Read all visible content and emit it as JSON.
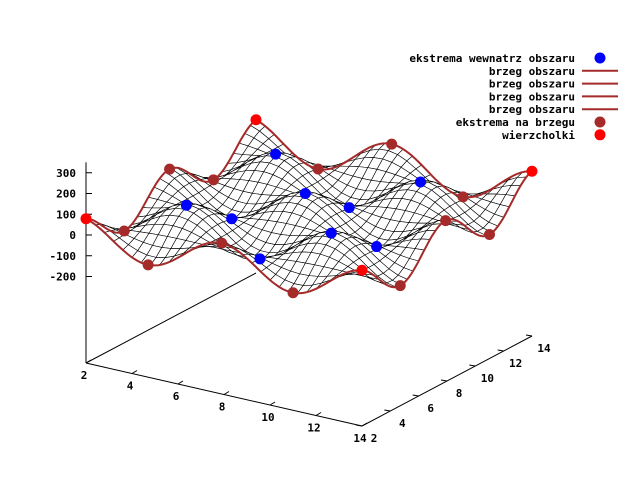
{
  "chart_data": {
    "type": "surface3d",
    "title": "",
    "xlabel": "",
    "ylabel": "",
    "zlabel": "",
    "x_ticks": [
      2,
      4,
      6,
      8,
      10,
      12,
      14
    ],
    "y_ticks": [
      2,
      4,
      6,
      8,
      10,
      12,
      14
    ],
    "z_ticks": [
      -200,
      -100,
      0,
      100,
      200,
      300
    ],
    "xlim": [
      2,
      14
    ],
    "ylim": [
      2,
      14
    ],
    "zlim": [
      -200,
      350
    ],
    "grid": false,
    "legend_position": "top-right",
    "legend": [
      {
        "label": "ekstrema wewnatrz obszaru",
        "kind": "point",
        "color": "#0000ff"
      },
      {
        "label": "brzeg obszaru",
        "kind": "line",
        "color": "#a52a2a"
      },
      {
        "label": "brzeg obszaru",
        "kind": "line",
        "color": "#a52a2a"
      },
      {
        "label": "brzeg obszaru",
        "kind": "line",
        "color": "#a52a2a"
      },
      {
        "label": "brzeg obszaru",
        "kind": "line",
        "color": "#a52a2a"
      },
      {
        "label": "ekstrema na brzegu",
        "kind": "point",
        "color": "#a52a2a"
      },
      {
        "label": "wierzcholki",
        "kind": "point",
        "color": "#ff0000"
      }
    ],
    "surface": {
      "formula": "amplitude * sin(x) * sin(y) with gentle slope",
      "samples": 30
    },
    "series": [
      {
        "name": "ekstrema wewnatrz obszaru",
        "color": "#0000ff",
        "points": [
          {
            "x": 4.7,
            "y": 4.7,
            "z": -95
          },
          {
            "x": 7.9,
            "y": 4.7,
            "z": 95
          },
          {
            "x": 11.0,
            "y": 4.7,
            "z": -95
          },
          {
            "x": 4.7,
            "y": 7.9,
            "z": 95
          },
          {
            "x": 7.9,
            "y": 7.9,
            "z": -95
          },
          {
            "x": 11.0,
            "y": 7.9,
            "z": 95
          },
          {
            "x": 4.7,
            "y": 11.0,
            "z": -95
          },
          {
            "x": 7.9,
            "y": 11.0,
            "z": 95
          },
          {
            "x": 11.0,
            "y": 11.0,
            "z": -95
          }
        ]
      },
      {
        "name": "ekstrema na brzegu",
        "color": "#a52a2a",
        "points": [
          {
            "x": 4.7,
            "y": 2,
            "z": -20
          },
          {
            "x": 7.9,
            "y": 2,
            "z": 60
          },
          {
            "x": 11.0,
            "y": 2,
            "z": -20
          },
          {
            "x": 2,
            "y": 4.7,
            "z": 60
          },
          {
            "x": 2,
            "y": 7.9,
            "z": -20
          },
          {
            "x": 2,
            "y": 11.0,
            "z": 60
          },
          {
            "x": 14,
            "y": 4.7,
            "z": 100
          },
          {
            "x": 14,
            "y": 7.9,
            "z": -20
          },
          {
            "x": 14,
            "y": 11.0,
            "z": 100
          },
          {
            "x": 4.7,
            "y": 14,
            "z": 60
          },
          {
            "x": 7.9,
            "y": 14,
            "z": -20
          },
          {
            "x": 11.0,
            "y": 14,
            "z": 60
          }
        ]
      },
      {
        "name": "wierzcholki",
        "color": "#ff0000",
        "points": [
          {
            "x": 2,
            "y": 2,
            "z": 0
          },
          {
            "x": 14,
            "y": 2,
            "z": 0
          },
          {
            "x": 2,
            "y": 14,
            "z": 0
          },
          {
            "x": 14,
            "y": 14,
            "z": 0
          }
        ]
      }
    ]
  }
}
